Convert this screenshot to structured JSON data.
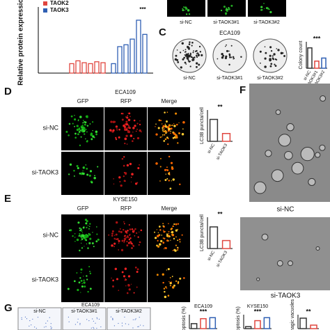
{
  "panelA": {
    "ylabel": "Relative protein expression",
    "series": [
      {
        "name": "TAOK2",
        "color": "#e0463f",
        "values": [
          1,
          1.3,
          1.1,
          1.0,
          1.2,
          1.1
        ]
      },
      {
        "name": "TAOK3",
        "color": "#2f5fb3",
        "values": [
          1,
          2.8,
          3.0,
          3.6,
          5.6,
          4.1
        ]
      }
    ],
    "ylim": [
      0,
      7
    ],
    "sig": "***"
  },
  "panelB": {
    "labels": [
      "si-NC",
      "si-TAOK3#1",
      "si-TAOK3#2"
    ]
  },
  "panelC": {
    "letter": "C",
    "title": "ECA109",
    "labels": [
      "si-NC",
      "si-TAOK3#1",
      "si-TAOK3#2"
    ],
    "chart": {
      "ylabel": "Colony count",
      "categories": [
        "si-NC",
        "si-TAOK3#1",
        "si-TAOK3#2"
      ],
      "values": [
        100,
        35,
        50
      ],
      "colors": [
        "#333333",
        "#e0463f",
        "#2f5fb3"
      ],
      "ylim": [
        0,
        130
      ],
      "sig": "***"
    }
  },
  "panelD": {
    "letter": "D",
    "title": "ECA109",
    "channels": [
      "GFP",
      "RFP",
      "Merge"
    ],
    "rows": [
      "si-NC",
      "si-TAOK3"
    ],
    "chart": {
      "ylabel": "LC3B puncta/cell",
      "categories": [
        "si-NC",
        "si-TAOK3"
      ],
      "values": [
        42,
        15
      ],
      "colors": [
        "#333333",
        "#e0463f"
      ],
      "ylim": [
        0,
        60
      ],
      "sig": "**"
    }
  },
  "panelE": {
    "letter": "E",
    "title": "KYSE150",
    "channels": [
      "GFP",
      "RFP",
      "Merge"
    ],
    "rows": [
      "si-NC",
      "si-TAOK3"
    ],
    "chart": {
      "ylabel": "LC3B puncta/cell",
      "categories": [
        "si-NC",
        "si-TAOK3"
      ],
      "values": [
        38,
        14
      ],
      "colors": [
        "#333333",
        "#e0463f"
      ],
      "ylim": [
        0,
        55
      ],
      "sig": "**"
    }
  },
  "panelF": {
    "letter": "F",
    "labels": [
      "si-NC",
      "si-TAOK3"
    ]
  },
  "panelG": {
    "letter": "G",
    "title": "ECA109",
    "labels": [
      "si-NC",
      "si-TAOK3#1",
      "si-TAOK3#2"
    ],
    "charts": [
      {
        "title": "ECA109",
        "ylabel": "Apoptosis (%)",
        "values": [
          5,
          10,
          11
        ],
        "colors": [
          "#333333",
          "#e0463f",
          "#2f5fb3"
        ],
        "ylim": [
          0,
          14
        ],
        "sig": "***"
      },
      {
        "title": "KYSE150",
        "ylabel": "Apoptosis (%)",
        "values": [
          2,
          8,
          11
        ],
        "colors": [
          "#333333",
          "#e0463f",
          "#2f5fb3"
        ],
        "ylim": [
          0,
          14
        ],
        "sig": "***"
      },
      {
        "ylabel": "Autophagic vacuoles",
        "values": [
          6,
          2
        ],
        "colors": [
          "#333333",
          "#e0463f"
        ],
        "ylim": [
          0,
          8
        ],
        "sig": "**"
      }
    ]
  }
}
